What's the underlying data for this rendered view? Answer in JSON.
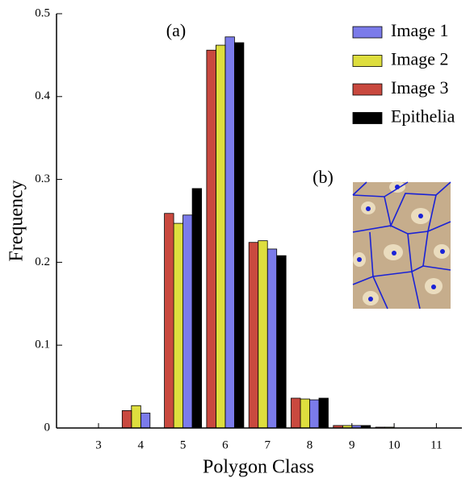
{
  "chart_data": {
    "type": "bar",
    "xlabel": "Polygon Class",
    "ylabel": "Frequency",
    "annotations": [
      "(a)",
      "(b)"
    ],
    "categories": [
      "3",
      "4",
      "5",
      "6",
      "7",
      "8",
      "9",
      "10",
      "11"
    ],
    "series": [
      {
        "name": "Image 1",
        "color": "#7b7bea",
        "values": [
          0,
          0.018,
          0.257,
          0.472,
          0.216,
          0.034,
          0.003,
          0,
          0
        ]
      },
      {
        "name": "Image 2",
        "color": "#dede3e",
        "values": [
          0,
          0.027,
          0.247,
          0.462,
          0.226,
          0.035,
          0.003,
          0.001,
          0
        ]
      },
      {
        "name": "Image 3",
        "color": "#c9493f",
        "values": [
          0,
          0.021,
          0.259,
          0.456,
          0.224,
          0.036,
          0.003,
          0.001,
          0
        ]
      },
      {
        "name": "Epithelia",
        "color": "#000000",
        "values": [
          0,
          0,
          0.289,
          0.465,
          0.208,
          0.036,
          0.003,
          0,
          0
        ]
      }
    ],
    "ylim": [
      0,
      0.5
    ],
    "yticks": [
      0,
      0.1,
      0.2,
      0.3,
      0.4,
      0.5
    ],
    "legend": "upper right"
  }
}
